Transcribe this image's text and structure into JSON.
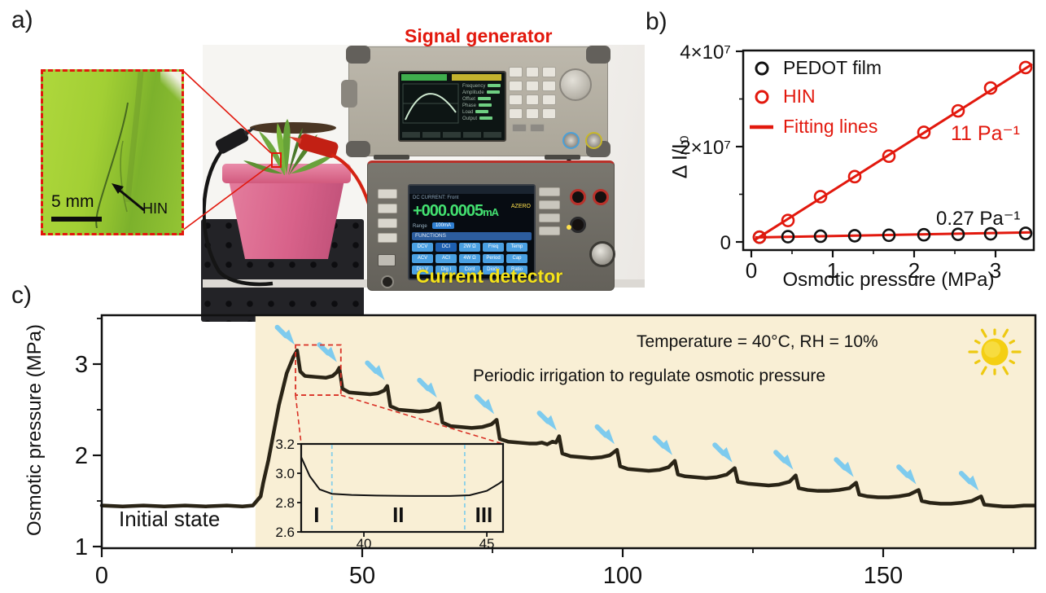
{
  "panels": {
    "a": {
      "label": "a)",
      "inset": {
        "scale_bar_label": "5 mm",
        "fiber_label": "HIN"
      },
      "photo": {
        "signal_generator_label": "Signal generator",
        "current_detector_label": "Current detector",
        "signal_generator_screen_fields": [
          "Frequency",
          "Amplitude",
          "Offset",
          "Phase",
          "Load",
          "Output"
        ],
        "current_detector": {
          "mode": "DC CURRENT: Front",
          "reading": "+000.0005",
          "reading_unit": "mA",
          "azero": "AZERO",
          "range_label": "Range",
          "range_value": "100mA",
          "functions_label": "FUNCTIONS",
          "function_buttons": [
            [
              "DCV",
              "DCI",
              "2W Ω",
              "Freq",
              "Temp"
            ],
            [
              "ACV",
              "ACI",
              "4W Ω",
              "Period",
              "Cap"
            ],
            [
              "Dig V",
              "Dig I",
              "Cont",
              "Diode",
              "Ratio"
            ]
          ]
        }
      }
    },
    "b": {
      "label": "b)"
    },
    "c": {
      "label": "c)"
    }
  },
  "colors": {
    "accent_red": "#e2180d",
    "label_yellow": "#f5e318",
    "shading_beige": "#f9efd5",
    "curve_dark": "#2a2416",
    "arrow_blue": "#7ecbee",
    "inset_divider_blue": "#86cfe9",
    "zoom_box_red": "#d93025",
    "sun_yellow": "#f4cf13"
  },
  "chart_data": [
    {
      "type": "scatter",
      "title": "",
      "xlabel": "Osmotic pressure (MPa)",
      "ylabel": "Δ I/I₀",
      "xlim": [
        -0.1,
        3.47
      ],
      "ylim": [
        -1700000,
        40200000
      ],
      "grid": false,
      "legend_position": "upper-left",
      "xticks": {
        "values": [
          0,
          1,
          2,
          3
        ],
        "labels": [
          "0",
          "1",
          "2",
          "3"
        ],
        "minor": [
          0.5,
          1.5,
          2.5
        ]
      },
      "yticks": {
        "values": [
          0,
          20000000,
          40000000
        ],
        "labels": [
          "0",
          "2×10⁷",
          "4×10⁷"
        ],
        "minor": [
          10000000,
          30000000
        ]
      },
      "x": [
        0.1,
        0.45,
        0.85,
        1.27,
        1.69,
        2.12,
        2.54,
        2.94,
        3.37
      ],
      "series": [
        {
          "name": "PEDOT film",
          "color": "#111111",
          "marker": "open-circle",
          "values": [
            1000000,
            1100000,
            1200000,
            1300000,
            1400000,
            1500000,
            1600000,
            1700000,
            1800000
          ],
          "fit": {
            "x": [
              0.05,
              3.45
            ],
            "y": [
              950000,
              2000000
            ]
          }
        },
        {
          "name": "HIN",
          "color": "#e2180d",
          "marker": "open-circle",
          "values": [
            1000000,
            4500000,
            9500000,
            13700000,
            18000000,
            23000000,
            27500000,
            32300000,
            36600000
          ],
          "fit": {
            "x": [
              0.05,
              3.45
            ],
            "y": [
              500000,
              37300000
            ]
          }
        }
      ],
      "legend": [
        {
          "label": "PEDOT film",
          "color": "#111111",
          "swatch": "open-circle"
        },
        {
          "label": "HIN",
          "color": "#e2180d",
          "swatch": "open-circle"
        },
        {
          "label": "Fitting lines",
          "color": "#e2180d",
          "swatch": "line"
        }
      ],
      "annotations": [
        {
          "text": "11 Pa⁻¹",
          "color": "#e2180d",
          "target_series": "HIN"
        },
        {
          "text": "0.27 Pa⁻¹",
          "color": "#111111",
          "target_series": "PEDOT film"
        }
      ]
    },
    {
      "type": "line",
      "title": "",
      "xlabel": "",
      "ylabel": "Osmotic pressure (MPa)",
      "xlim": [
        0,
        179.2
      ],
      "ylim": [
        1,
        3.56
      ],
      "grid": false,
      "xticks": {
        "values": [
          0,
          50,
          100,
          150
        ],
        "labels": [
          "0",
          "50",
          "100",
          "150"
        ],
        "minor": [
          25,
          75,
          125,
          175
        ]
      },
      "yticks": {
        "values": [
          1,
          2,
          3
        ],
        "labels": [
          "1",
          "2",
          "3"
        ],
        "minor": [
          1.5,
          2.5,
          3.5
        ]
      },
      "shaded_region": {
        "x_start": 29.5,
        "color": "#f9efd5"
      },
      "texts": {
        "initial_state": "Initial state",
        "conditions": "Temperature = 40°C, RH = 10%",
        "periodic": "Periodic irrigation to regulate osmotic pressure"
      },
      "series": [
        {
          "name": "osmotic pressure",
          "color": "#2a2416",
          "points": [
            [
              0,
              1.45
            ],
            [
              4,
              1.44
            ],
            [
              8,
              1.45
            ],
            [
              12,
              1.44
            ],
            [
              16,
              1.45
            ],
            [
              20,
              1.44
            ],
            [
              24,
              1.45
            ],
            [
              27,
              1.44
            ],
            [
              29,
              1.45
            ],
            [
              30.5,
              1.55
            ],
            [
              31,
              1.7
            ],
            [
              32,
              1.95
            ],
            [
              33,
              2.25
            ],
            [
              34,
              2.55
            ],
            [
              35.5,
              2.9
            ],
            [
              36.8,
              3.08
            ],
            [
              37.5,
              3.15
            ],
            [
              38.1,
              2.92
            ],
            [
              39,
              2.87
            ],
            [
              41,
              2.86
            ],
            [
              43,
              2.85
            ],
            [
              44.3,
              2.87
            ],
            [
              45.1,
              2.91
            ],
            [
              45.6,
              2.96
            ],
            [
              46.2,
              2.73
            ],
            [
              47.5,
              2.69
            ],
            [
              49.5,
              2.68
            ],
            [
              51.5,
              2.67
            ],
            [
              53,
              2.68
            ],
            [
              54.2,
              2.71
            ],
            [
              54.8,
              2.76
            ],
            [
              55.4,
              2.54
            ],
            [
              57,
              2.5
            ],
            [
              59,
              2.49
            ],
            [
              61,
              2.48
            ],
            [
              62.8,
              2.49
            ],
            [
              64.2,
              2.52
            ],
            [
              64.8,
              2.57
            ],
            [
              65.4,
              2.36
            ],
            [
              67,
              2.32
            ],
            [
              69,
              2.31
            ],
            [
              71,
              2.3
            ],
            [
              73,
              2.31
            ],
            [
              74.8,
              2.34
            ],
            [
              75.8,
              2.39
            ],
            [
              76.4,
              2.18
            ],
            [
              78,
              2.15
            ],
            [
              80,
              2.14
            ],
            [
              82,
              2.13
            ],
            [
              83.5,
              2.13
            ],
            [
              84.5,
              2.14
            ],
            [
              85.5,
              2.12
            ],
            [
              86.5,
              2.15
            ],
            [
              87.2,
              2.14
            ],
            [
              87.8,
              2.21
            ],
            [
              88.4,
              2.02
            ],
            [
              90,
              1.99
            ],
            [
              92,
              1.98
            ],
            [
              94,
              1.97
            ],
            [
              96,
              1.98
            ],
            [
              97.5,
              2.0
            ],
            [
              98.9,
              2.06
            ],
            [
              99.5,
              1.88
            ],
            [
              101,
              1.85
            ],
            [
              103,
              1.84
            ],
            [
              105,
              1.83
            ],
            [
              107,
              1.84
            ],
            [
              108.8,
              1.87
            ],
            [
              110,
              1.94
            ],
            [
              110.6,
              1.79
            ],
            [
              112,
              1.77
            ],
            [
              114,
              1.76
            ],
            [
              116,
              1.75
            ],
            [
              118,
              1.76
            ],
            [
              120,
              1.79
            ],
            [
              121.5,
              1.86
            ],
            [
              122.1,
              1.71
            ],
            [
              124,
              1.69
            ],
            [
              126,
              1.68
            ],
            [
              128,
              1.67
            ],
            [
              130,
              1.68
            ],
            [
              132,
              1.71
            ],
            [
              133.2,
              1.78
            ],
            [
              133.8,
              1.64
            ],
            [
              135.5,
              1.62
            ],
            [
              137.5,
              1.61
            ],
            [
              139.5,
              1.61
            ],
            [
              141.5,
              1.62
            ],
            [
              143.5,
              1.64
            ],
            [
              144.8,
              1.7
            ],
            [
              145.4,
              1.57
            ],
            [
              147,
              1.55
            ],
            [
              149,
              1.54
            ],
            [
              151,
              1.54
            ],
            [
              153,
              1.55
            ],
            [
              155,
              1.57
            ],
            [
              156.8,
              1.62
            ],
            [
              157.4,
              1.5
            ],
            [
              159,
              1.48
            ],
            [
              161,
              1.47
            ],
            [
              163,
              1.47
            ],
            [
              165,
              1.48
            ],
            [
              167,
              1.5
            ],
            [
              168.8,
              1.55
            ],
            [
              169.4,
              1.46
            ],
            [
              171,
              1.45
            ],
            [
              173,
              1.44
            ],
            [
              175,
              1.44
            ],
            [
              177,
              1.45
            ],
            [
              179,
              1.45
            ]
          ]
        }
      ],
      "irrigation_peaks": [
        [
          37.5,
          3.15
        ],
        [
          45.6,
          2.96
        ],
        [
          54.8,
          2.76
        ],
        [
          64.8,
          2.57
        ],
        [
          75.8,
          2.39
        ],
        [
          87.8,
          2.21
        ],
        [
          98.9,
          2.06
        ],
        [
          110,
          1.94
        ],
        [
          121.5,
          1.86
        ],
        [
          133.2,
          1.78
        ],
        [
          144.8,
          1.7
        ],
        [
          156.8,
          1.62
        ],
        [
          168.8,
          1.55
        ]
      ],
      "zoom_box": {
        "x1": 37.2,
        "x2": 45.9,
        "y1": 2.66,
        "y2": 3.21
      },
      "inset": {
        "xlim": [
          37.45,
          45.66
        ],
        "ylim": [
          2.6,
          3.2
        ],
        "xticks": {
          "values": [
            40,
            45
          ],
          "labels": [
            "40",
            "45"
          ]
        },
        "yticks": {
          "values": [
            3.2,
            3.0,
            2.8,
            2.6
          ],
          "labels": [
            "3.2",
            "3.0",
            "2.8",
            "2.6"
          ]
        },
        "dividers": [
          38.7,
          44.1
        ],
        "regions": [
          "I",
          "II",
          "III"
        ],
        "points": [
          [
            37.45,
            3.11
          ],
          [
            37.8,
            2.98
          ],
          [
            38.2,
            2.89
          ],
          [
            38.7,
            2.86
          ],
          [
            39.5,
            2.852
          ],
          [
            40.5,
            2.848
          ],
          [
            41.5,
            2.846
          ],
          [
            42.5,
            2.845
          ],
          [
            43.5,
            2.845
          ],
          [
            44.3,
            2.85
          ],
          [
            45,
            2.88
          ],
          [
            45.5,
            2.93
          ],
          [
            45.66,
            2.95
          ]
        ]
      }
    }
  ]
}
